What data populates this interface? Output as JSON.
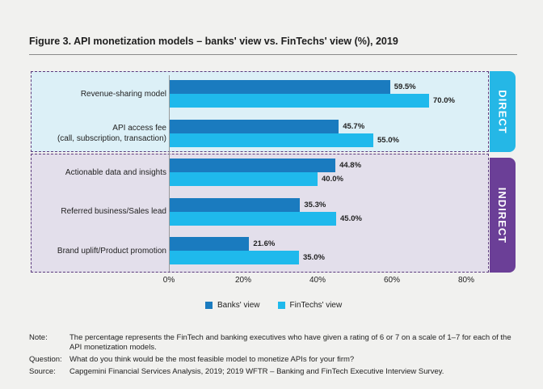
{
  "title": "Figure 3. API monetization models – banks' view vs. FinTechs' view (%), 2019",
  "groups": {
    "direct": "DIRECT",
    "indirect": "INDIRECT"
  },
  "chart_data": {
    "type": "bar",
    "orientation": "horizontal",
    "categories": [
      "Revenue-sharing model",
      "API access fee\n(call, subscription, transaction)",
      "Actionable data and insights",
      "Referred business/Sales lead",
      "Brand uplift/Product promotion"
    ],
    "series": [
      {
        "name": "Banks' view",
        "color": "#1a7bbf",
        "values": [
          59.5,
          45.7,
          44.8,
          35.3,
          21.6
        ]
      },
      {
        "name": "FinTechs' view",
        "color": "#1fb9ec",
        "values": [
          70.0,
          55.0,
          40.0,
          45.0,
          35.0
        ]
      }
    ],
    "value_labels": [
      [
        "59.5%",
        "45.7%",
        "44.8%",
        "35.3%",
        "21.6%"
      ],
      [
        "70.0%",
        "55.0%",
        "40.0%",
        "45.0%",
        "35.0%"
      ]
    ],
    "xlim": [
      0,
      80
    ],
    "xticks": [
      "0%",
      "20%",
      "40%",
      "60%",
      "80%"
    ],
    "legend_position": "bottom",
    "grid": false
  },
  "notes": [
    {
      "key": "Note:",
      "text": "The percentage represents the FinTech and banking executives who have given a rating of 6 or 7 on a scale of 1–7 for each of the API monetization models."
    },
    {
      "key": "Question:",
      "text": "What do you think would be the most feasible model to monetize APIs for your firm?"
    },
    {
      "key": "Source:",
      "text": "Capgemini Financial Services Analysis, 2019; 2019 WFTR – Banking and FinTech Executive Interview Survey."
    }
  ]
}
